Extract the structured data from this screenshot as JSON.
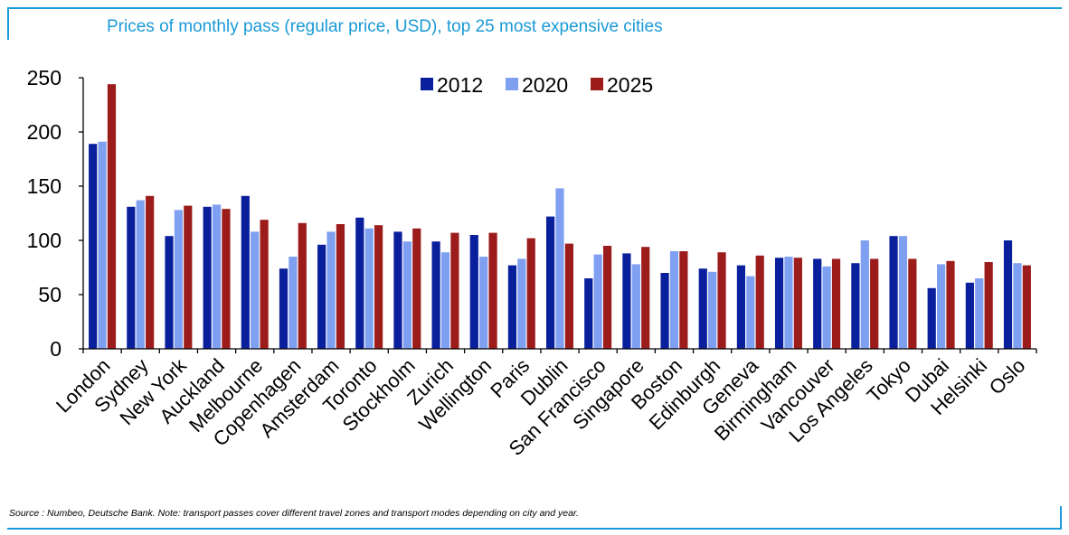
{
  "chart_data": {
    "type": "bar",
    "title": "Prices of monthly pass (regular price, USD), top 25 most expensive cities",
    "xlabel": "",
    "ylabel": "",
    "ylim": [
      0,
      250
    ],
    "yticks": [
      "0",
      "50",
      "100",
      "150",
      "200",
      "250"
    ],
    "grid": false,
    "legend_position": "top-center",
    "categories": [
      "London",
      "Sydney",
      "New York",
      "Auckland",
      "Melbourne",
      "Copenhagen",
      "Amsterdam",
      "Toronto",
      "Stockholm",
      "Zurich",
      "Wellington",
      "Paris",
      "Dublin",
      "San Francisco",
      "Singapore",
      "Boston",
      "Edinburgh",
      "Geneva",
      "Birmingham",
      "Vancouver",
      "Los Angeles",
      "Tokyo",
      "Dubai",
      "Helsinki",
      "Oslo"
    ],
    "series": [
      {
        "name": "2012",
        "color": "#0a1f9c",
        "values": [
          189,
          131,
          104,
          131,
          141,
          74,
          96,
          121,
          108,
          99,
          105,
          77,
          122,
          65,
          88,
          70,
          74,
          77,
          84,
          83,
          79,
          104,
          56,
          61,
          100
        ]
      },
      {
        "name": "2020",
        "color": "#7f9ff0",
        "values": [
          191,
          137,
          128,
          133,
          108,
          85,
          108,
          111,
          99,
          89,
          85,
          83,
          148,
          87,
          78,
          90,
          71,
          67,
          85,
          76,
          100,
          104,
          78,
          65,
          79
        ]
      },
      {
        "name": "2025",
        "color": "#9c1c1c",
        "values": [
          244,
          141,
          132,
          129,
          119,
          116,
          115,
          114,
          111,
          107,
          107,
          102,
          97,
          95,
          94,
          90,
          89,
          86,
          84,
          83,
          83,
          83,
          81,
          80,
          77
        ]
      }
    ]
  },
  "source_note": "Source : Numbeo, Deutsche Bank. Note: transport passes cover different travel zones and transport modes depending on city and year."
}
